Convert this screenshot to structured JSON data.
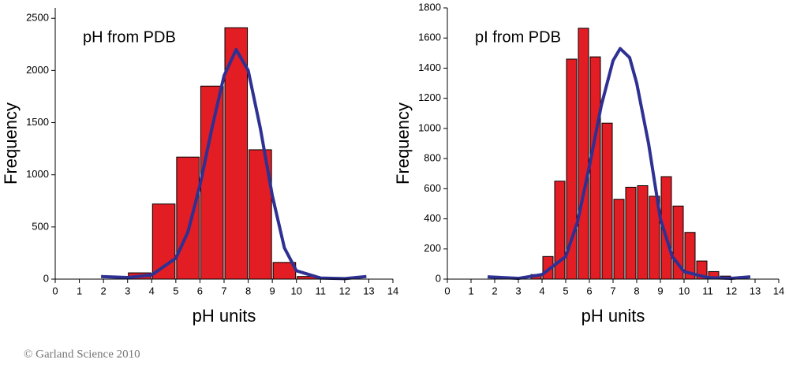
{
  "chart_data": [
    {
      "type": "histogram",
      "title": "pH from PDB",
      "x_label": "pH units",
      "y_label": "Frequency",
      "bins": [
        3,
        4,
        5,
        6,
        7,
        8,
        9,
        10,
        11
      ],
      "values": [
        60,
        720,
        1170,
        1850,
        2410,
        1240,
        160,
        25
      ],
      "color": "#e31d24",
      "fit": {
        "color": "#2e3192",
        "x": [
          1.9,
          3,
          4,
          5,
          5.5,
          6,
          6.5,
          7,
          7.5,
          8,
          8.5,
          9,
          9.5,
          10,
          11,
          12,
          12.9
        ],
        "values": [
          25,
          15,
          40,
          200,
          450,
          900,
          1450,
          1950,
          2200,
          2000,
          1450,
          800,
          300,
          80,
          10,
          5,
          25
        ]
      },
      "xlim": [
        0,
        14
      ],
      "xticks": [
        0,
        1,
        2,
        3,
        4,
        5,
        6,
        7,
        8,
        9,
        10,
        11,
        12,
        13,
        14
      ],
      "ylim": [
        0,
        2600
      ],
      "yticks": [
        0,
        500,
        1000,
        1500,
        2000,
        2500
      ]
    },
    {
      "type": "histogram",
      "title": "pI from PDB",
      "x_label": "pH units",
      "y_label": "Frequency",
      "bins": [
        3.5,
        4,
        4.5,
        5,
        5.5,
        6,
        6.5,
        7,
        7.5,
        8,
        8.5,
        9,
        9.5,
        10,
        10.5,
        11,
        11.5,
        12
      ],
      "values": [
        30,
        150,
        650,
        1460,
        1665,
        1475,
        1035,
        530,
        610,
        620,
        550,
        680,
        485,
        310,
        120,
        50,
        20
      ],
      "color": "#e31d24",
      "fit": {
        "color": "#2e3192",
        "x": [
          1.7,
          3,
          4,
          5,
          5.5,
          6,
          6.5,
          7,
          7.3,
          7.7,
          8,
          8.5,
          9,
          9.5,
          10,
          11,
          12,
          12.8
        ],
        "values": [
          15,
          5,
          30,
          150,
          380,
          750,
          1150,
          1450,
          1530,
          1470,
          1300,
          900,
          400,
          150,
          50,
          10,
          5,
          15
        ]
      },
      "xlim": [
        0,
        14
      ],
      "xticks": [
        0,
        1,
        2,
        3,
        4,
        5,
        6,
        7,
        8,
        9,
        10,
        11,
        12,
        13,
        14
      ],
      "ylim": [
        0,
        1800
      ],
      "yticks": [
        0,
        200,
        400,
        600,
        800,
        1000,
        1200,
        1400,
        1600,
        1800
      ]
    }
  ],
  "credit": "© Garland Science 2010"
}
